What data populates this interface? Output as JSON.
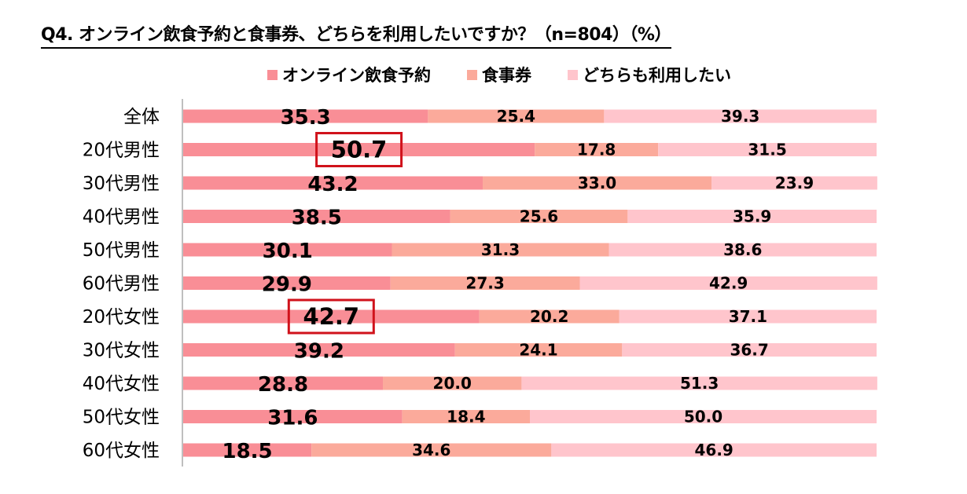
{
  "title": "Q4. オンライン飲食予約と食事券、どちらを利用したいですか？（n=804）（%）",
  "legend": [
    "オンライン飲食予約",
    "食事券",
    "どちらも利用したい"
  ],
  "colors": {
    "s1": "#f98e96",
    "s2": "#fbaa9b",
    "s3": "#ffc5cc",
    "highlight": "#d0121b",
    "axis": "#bfbfbf"
  },
  "chart_data": {
    "type": "bar",
    "orientation": "horizontal",
    "stacked": true,
    "normalized": true,
    "categories": [
      "全体",
      "20代男性",
      "30代男性",
      "40代男性",
      "50代男性",
      "60代男性",
      "20代女性",
      "30代女性",
      "40代女性",
      "50代女性",
      "60代女性"
    ],
    "series": [
      {
        "name": "オンライン飲食予約",
        "values": [
          35.3,
          50.7,
          43.2,
          38.5,
          30.1,
          29.9,
          42.7,
          39.2,
          28.8,
          31.6,
          18.5
        ]
      },
      {
        "name": "食事券",
        "values": [
          25.4,
          17.8,
          33.0,
          25.6,
          31.3,
          27.3,
          20.2,
          24.1,
          20.0,
          18.4,
          34.6
        ]
      },
      {
        "name": "どちらも利用したい",
        "values": [
          39.3,
          31.5,
          23.9,
          35.9,
          38.6,
          42.9,
          37.1,
          36.7,
          51.3,
          50.0,
          46.9
        ]
      }
    ],
    "highlighted": [
      "20代男性",
      "20代女性"
    ],
    "legend_position": "top",
    "grid": false
  }
}
